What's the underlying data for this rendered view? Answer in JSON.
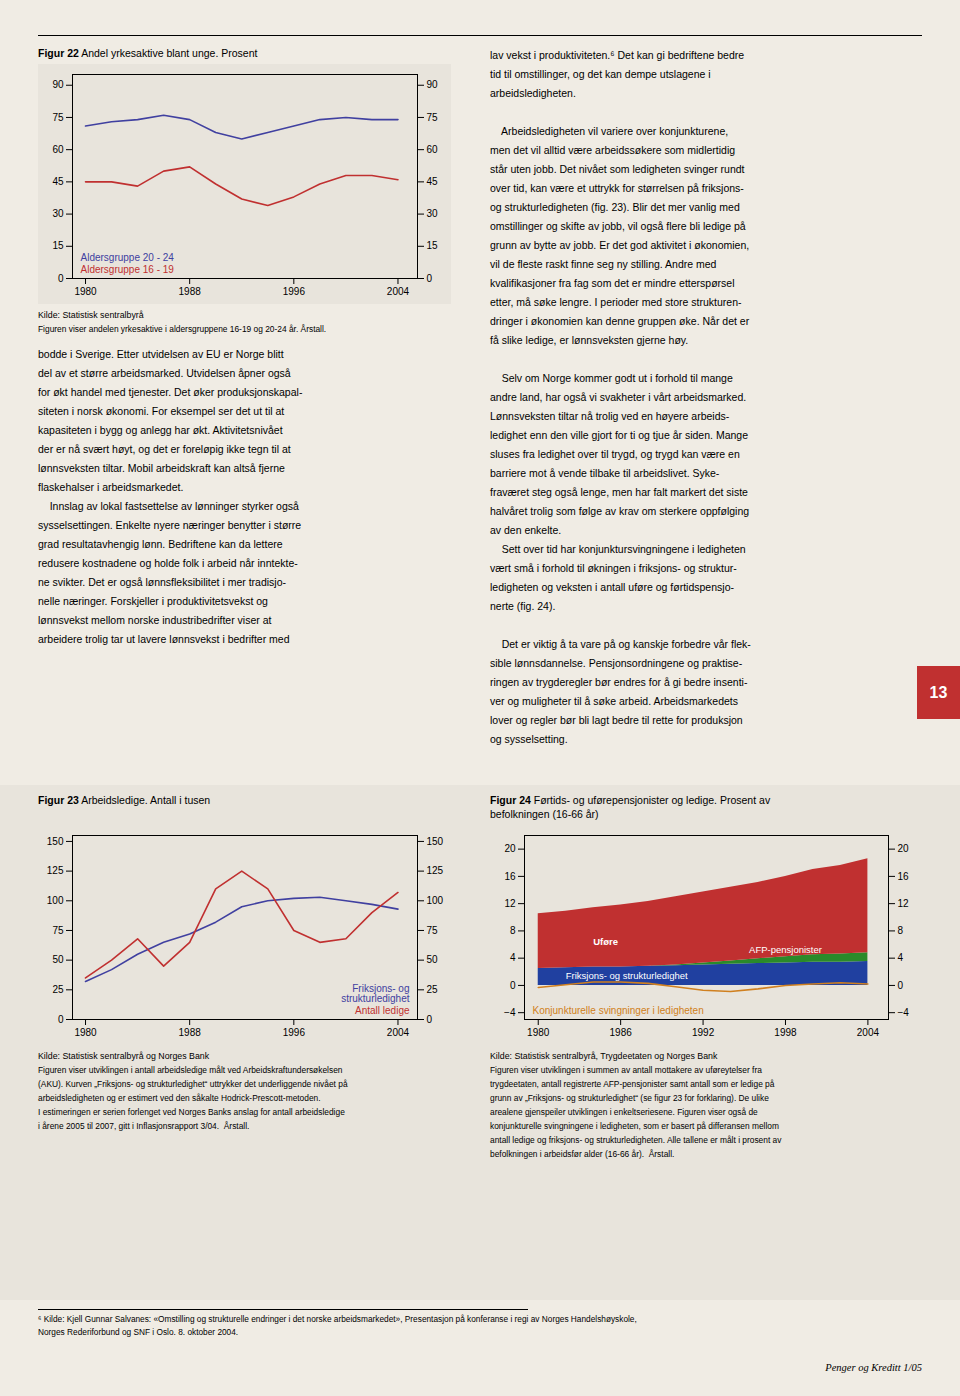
{
  "chart_data": [
    {
      "type": "line",
      "title": "Figur 22",
      "subtitle": "Andel yrkesaktive blant unge. Prosent",
      "x": [
        1980,
        1982,
        1984,
        1986,
        1988,
        1990,
        1992,
        1994,
        1996,
        1998,
        2000,
        2002,
        2004
      ],
      "series": [
        {
          "name": "Aldersgruppe 20 - 24",
          "color": "#4040a0",
          "values": [
            71,
            73,
            74,
            76,
            74,
            68,
            65,
            68,
            71,
            74,
            75,
            74,
            74
          ]
        },
        {
          "name": "Aldersgruppe 16 - 19",
          "color": "#c03030",
          "values": [
            45,
            45,
            43,
            50,
            52,
            44,
            37,
            34,
            38,
            44,
            48,
            48,
            46
          ]
        }
      ],
      "xlim": [
        1979,
        2005.5
      ],
      "xticks": [
        1980,
        1988,
        1996,
        2004
      ],
      "ylim": [
        0,
        95
      ],
      "yticks": [
        0,
        15,
        30,
        45,
        60,
        75,
        90
      ],
      "grid": false,
      "source": "Kilde: Statistisk sentralbyrå",
      "caption": [
        "Figuren viser andelen yrkesaktive i aldersgruppene 16-19 og 20-24 år. Årstall."
      ]
    },
    {
      "type": "line",
      "title": "Figur 23",
      "subtitle": "Arbeidsledige. Antall i tusen",
      "x": [
        1980,
        1982,
        1984,
        1986,
        1988,
        1990,
        1992,
        1994,
        1996,
        1998,
        2000,
        2002,
        2004
      ],
      "series": [
        {
          "name": "Friksjons- og\nstrukturledighet",
          "color": "#4040a0",
          "values": [
            32,
            42,
            55,
            65,
            72,
            82,
            95,
            100,
            102,
            103,
            100,
            97,
            93
          ]
        },
        {
          "name": "Antall ledige",
          "color": "#c03030",
          "values": [
            35,
            50,
            68,
            45,
            65,
            110,
            125,
            110,
            75,
            65,
            68,
            90,
            107
          ]
        }
      ],
      "xlim": [
        1979,
        2005.5
      ],
      "xticks": [
        1980,
        1988,
        1996,
        2004
      ],
      "ylim": [
        0,
        155
      ],
      "yticks": [
        0,
        25,
        50,
        75,
        100,
        125,
        150
      ],
      "grid": false,
      "source": "Kilde: Statistisk sentralbyrå og Norges Bank",
      "caption": [
        "Figuren viser utviklingen i antall arbeidsledige målt ved Arbeidskraftundersøkelsen",
        "(AKU). Kurven „Friksjons- og strukturledighet“ uttrykker det underliggende nivået på",
        "arbeidsledigheten og er estimert ved den såkalte Hodrick-Prescott-metoden.",
        "I estimeringen er serien forlenget ved Norges Banks anslag for antall arbeidsledige",
        "i årene 2005 til 2007, gitt i Inflasjonsrapport 3/04.  Årstall."
      ]
    },
    {
      "type": "area",
      "stacked": true,
      "title": "Figur 24",
      "subtitle": "Førtids- og uførepensjonister og ledige. Prosent av\nbefolkningen (16-66 år)",
      "x": [
        1980,
        1982,
        1984,
        1986,
        1988,
        1990,
        1992,
        1994,
        1996,
        1998,
        2000,
        2002,
        2004
      ],
      "series": [
        {
          "name": "Friksjons- og strukturledighet",
          "color": "#2040a0",
          "values": [
            2.5,
            2.6,
            2.7,
            2.7,
            2.8,
            2.9,
            3.0,
            3.1,
            3.2,
            3.3,
            3.4,
            3.4,
            3.5
          ]
        },
        {
          "name": "AFP-pensjonister",
          "color": "#2a8a2a",
          "values": [
            0.0,
            0.0,
            0.0,
            0.0,
            0.0,
            0.1,
            0.3,
            0.5,
            0.7,
            0.9,
            1.1,
            1.2,
            1.3
          ]
        },
        {
          "name": "Uføre",
          "color": "#c03030",
          "values": [
            8.0,
            8.3,
            8.7,
            9.1,
            9.5,
            10.0,
            10.4,
            10.8,
            11.2,
            11.8,
            12.5,
            13.0,
            13.8
          ]
        },
        {
          "name": "Konjunkturelle svingninger i ledigheten",
          "color": "#d08020",
          "type": "line",
          "values": [
            -0.3,
            0.1,
            0.5,
            0.5,
            0.3,
            -0.2,
            -0.7,
            -0.9,
            -0.5,
            0.0,
            0.2,
            0.4,
            0.2
          ]
        }
      ],
      "xlim": [
        1979,
        2005.5
      ],
      "xticks": [
        1980,
        1986,
        1992,
        1998,
        2004
      ],
      "ylim": [
        -5,
        22
      ],
      "yticks": [
        -4,
        0,
        4,
        8,
        12,
        16,
        20
      ],
      "grid": false,
      "source": "Kilde: Statistisk sentralbyrå, Trygdeetaten og Norges Bank",
      "caption": [
        "Figuren viser utviklingen i summen av antall mottakere av uføreytelser fra",
        "trygdeetaten, antall registrerte AFP-pensjonister samt antall som er ledige på",
        "grunn av „Friksjons- og strukturledighet“ (se figur 23 for forklaring). De ulike",
        "arealene gjenspeiler utviklingen i enkeltseriesene. Figuren viser også de",
        "konjunkturelle svingningene i ledigheten, som er basert på differansen mellom",
        "antall ledige og friksjons- og strukturledigheten. Alle tallene er målt i prosent av",
        "befolkningen i arbeidsfør alder (16-66 år).  Årstall."
      ]
    }
  ],
  "left_column_text": [
    "bodde i Sverige. Etter utvidelsen av EU er Norge blitt",
    "del av et større arbeidsmarked. Utvidelsen åpner også",
    "for økt handel med tjenester. Det øker produksjonskapal-",
    "siteten i norsk økonomi. For eksempel ser det ut til at",
    "kapasiteten i bygg og anlegg har økt. Aktivitetsnivået",
    "der er nå svært høyt, og det er foreløpig ikke tegn til at",
    "lønnsveksten tiltar. Mobil arbeidskraft kan altså fjerne",
    "flaskehalser i arbeidsmarkedet.",
    "    Innslag av lokal fastsettelse av lønninger styrker også",
    "sysselsettingen. Enkelte nyere næringer benytter i større",
    "grad resultatavhengig lønn. Bedriftene kan da lettere",
    "redusere kostnadene og holde folk i arbeid når inntekte-",
    "ne svikter. Det er også lønnsfleksibilitet i mer tradisjo-",
    "nelle næringer. Forskjeller i produktivitetsvekst og",
    "lønnsvekst mellom norske industribedrifter viser at",
    "arbeidere trolig tar ut lavere lønnsvekst i bedrifter med"
  ],
  "right_column_text": [
    [
      "lav vekst i produktiviteten.⁶ Det kan gi bedriftene bedre",
      "tid til omstillinger, og det kan dempe utslagene i",
      "arbeidsledigheten."
    ],
    [
      "    Arbeidsledigheten vil variere over konjunkturene,",
      "men det vil alltid være arbeidssøkere som midlertidig",
      "står uten jobb. Det nivået som ledigheten svinger rundt",
      "over tid, kan være et uttrykk for størrelsen på friksjons-",
      "og strukturledigheten (fig. 23). Blir det mer vanlig med",
      "omstillinger og skifte av jobb, vil også flere bli ledige på",
      "grunn av bytte av jobb. Er det god aktivitet i økonomien,",
      "vil de fleste raskt finne seg ny stilling. Andre med",
      "kvalifikasjoner fra fag som det er mindre etterspørsel",
      "etter, må søke lengre. I perioder med store strukturen-",
      "dringer i økonomien kan denne gruppen øke. Når det er",
      "få slike ledige, er lønnsveksten gjerne høy."
    ],
    [
      "    Selv om Norge kommer godt ut i forhold til mange",
      "andre land, har også vi svakheter i vårt arbeidsmarked.",
      "Lønnsveksten tiltar nå trolig ved en høyere arbeids-",
      "ledighet enn den ville gjort for ti og tjue år siden. Mange",
      "sluses fra ledighet over til trygd, og trygd kan være en",
      "barriere mot å vende tilbake til arbeidslivet. Syke-",
      "fraværet steg også lenge, men har falt markert det siste",
      "halvåret trolig som følge av krav om sterkere oppfølging",
      "av den enkelte.",
      "    Sett over tid har konjunktursvingningene i ledigheten",
      "vært små i forhold til økningen i friksjons- og struktur-",
      "ledigheten og veksten i antall uføre og førtidspensjo-",
      "nerte (fig. 24)."
    ],
    [
      "    Det er viktig å ta vare på og kanskje forbedre vår flek-",
      "sible lønnsdannelse. Pensjonsordningene og praktise-",
      "ringen av trygderegler bør endres for å gi bedre insenti-",
      "ver og muligheter til å søke arbeid. Arbeidsmarkedets",
      "lover og regler bør bli lagt bedre til rette for produksjon",
      "og sysselsetting."
    ]
  ],
  "footnote": [
    "⁶ Kilde: Kjell Gunnar Salvanes: «Omstilling og strukturelle endringer i det norske arbeidsmarkedet», Presentasjon på konferanse i regi av Norges Handelshøyskole,",
    "Norges Rederiforbund og SNF i Oslo. 8. oktober 2004."
  ],
  "footer": "Penger og Kreditt 1/05",
  "page_number": "13"
}
